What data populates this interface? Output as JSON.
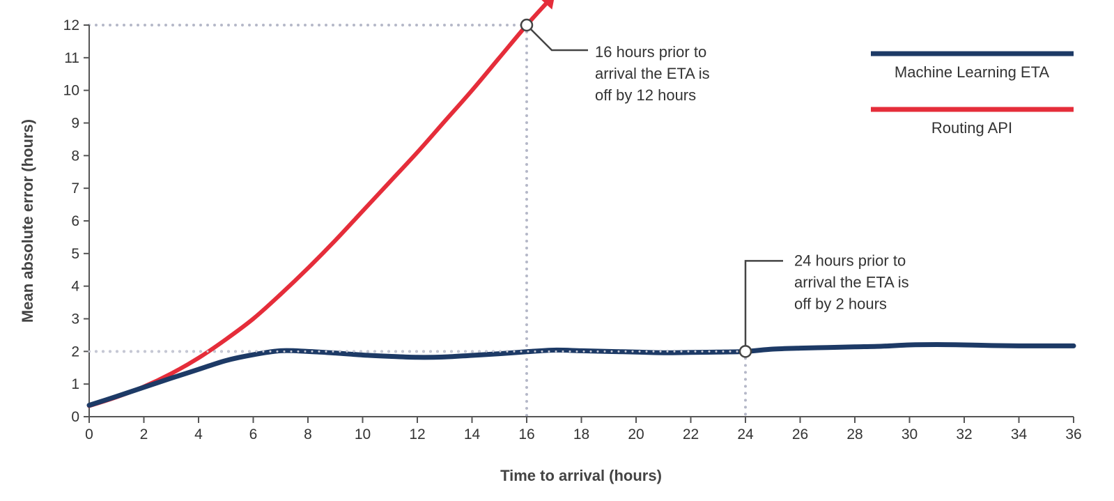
{
  "chart_data": {
    "type": "line",
    "title": "",
    "xlabel": "Time to arrival (hours)",
    "ylabel": "Mean absolute error (hours)",
    "xlim": [
      0,
      36
    ],
    "ylim": [
      0,
      12
    ],
    "xticks": [
      0,
      2,
      4,
      6,
      8,
      10,
      12,
      14,
      16,
      18,
      20,
      22,
      24,
      26,
      28,
      30,
      32,
      34,
      36
    ],
    "yticks": [
      0,
      1,
      2,
      3,
      4,
      5,
      6,
      7,
      8,
      9,
      10,
      11,
      12
    ],
    "grid": false,
    "legend_position": "top-right",
    "series": [
      {
        "name": "Machine Learning ETA",
        "color": "#1d3a66",
        "x": [
          0,
          1,
          2,
          3,
          4,
          5,
          6,
          7,
          8,
          9,
          10,
          11,
          12,
          13,
          14,
          15,
          16,
          17,
          18,
          19,
          20,
          21,
          22,
          23,
          24,
          25,
          26,
          27,
          28,
          29,
          30,
          31,
          32,
          33,
          34,
          35,
          36
        ],
        "y": [
          0.35,
          0.62,
          0.9,
          1.18,
          1.45,
          1.72,
          1.9,
          2.02,
          2.0,
          1.95,
          1.89,
          1.85,
          1.82,
          1.83,
          1.88,
          1.93,
          1.99,
          2.04,
          2.02,
          2.0,
          1.98,
          1.96,
          1.97,
          1.98,
          2.0,
          2.07,
          2.1,
          2.12,
          2.14,
          2.16,
          2.2,
          2.21,
          2.2,
          2.18,
          2.17,
          2.17,
          2.17
        ]
      },
      {
        "name": "Routing API",
        "color": "#e52d3a",
        "x": [
          0,
          1,
          2,
          3,
          4,
          5,
          6,
          7,
          8,
          9,
          10,
          11,
          12,
          13,
          14,
          15,
          16,
          16.7
        ],
        "y": [
          0.33,
          0.6,
          0.92,
          1.32,
          1.8,
          2.37,
          3.0,
          3.75,
          4.55,
          5.4,
          6.3,
          7.2,
          8.1,
          9.05,
          10.0,
          11.0,
          12.0,
          12.65
        ]
      }
    ],
    "annotations": [
      {
        "x": 16,
        "y": 12,
        "lines": [
          "16 hours prior to",
          "arrival the ETA is",
          "off by 12 hours"
        ]
      },
      {
        "x": 24,
        "y": 2,
        "lines": [
          "24 hours prior to",
          "arrival the ETA is",
          "off by 2 hours"
        ]
      }
    ]
  }
}
